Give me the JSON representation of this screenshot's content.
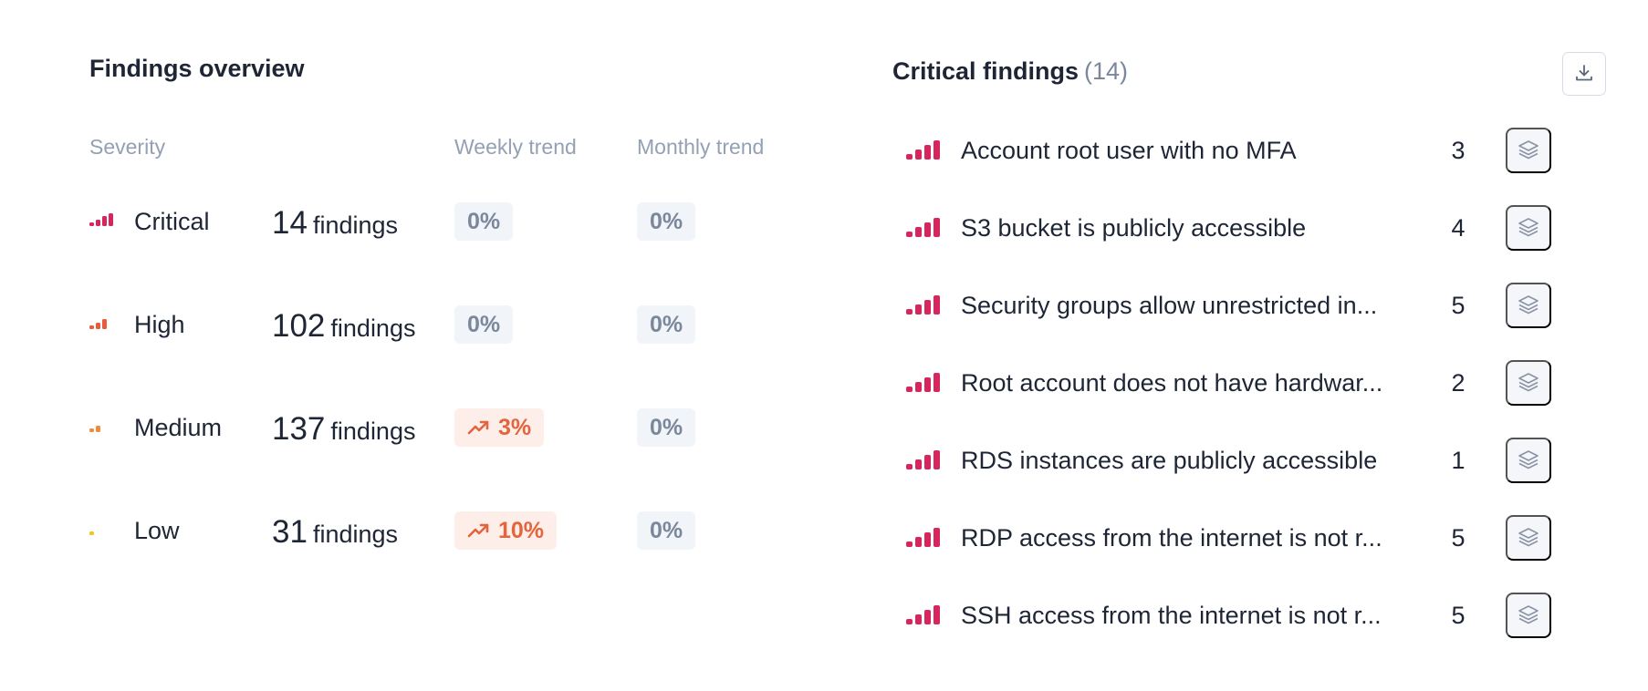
{
  "overview": {
    "title": "Findings overview",
    "columns": {
      "severity": "Severity",
      "weekly": "Weekly trend",
      "monthly": "Monthly trend"
    },
    "findings_word": "findings",
    "rows": [
      {
        "severity": "Critical",
        "count": "14",
        "weekly": "0%",
        "weekly_direction": "flat",
        "monthly": "0%",
        "color": "#d7255e",
        "level": 4
      },
      {
        "severity": "High",
        "count": "102",
        "weekly": "0%",
        "weekly_direction": "flat",
        "monthly": "0%",
        "color": "#ea5a3c",
        "level": 3
      },
      {
        "severity": "Medium",
        "count": "137",
        "weekly": "3%",
        "weekly_direction": "up",
        "monthly": "0%",
        "color": "#f08a3a",
        "level": 2
      },
      {
        "severity": "Low",
        "count": "31",
        "weekly": "10%",
        "weekly_direction": "up",
        "monthly": "0%",
        "color": "#f5c518",
        "level": 1
      }
    ]
  },
  "critical": {
    "title": "Critical findings",
    "count_label": "(14)",
    "download_icon": "download-icon",
    "action_icon": "layers-icon",
    "items": [
      {
        "title": "Account root user with no MFA",
        "count": "3"
      },
      {
        "title": "S3 bucket is publicly accessible",
        "count": "4"
      },
      {
        "title": "Security groups allow unrestricted in...",
        "count": "5"
      },
      {
        "title": "Root account does not have hardwar...",
        "count": "2"
      },
      {
        "title": "RDS instances are publicly accessible",
        "count": "1"
      },
      {
        "title": "RDP access from the internet is not r...",
        "count": "5"
      },
      {
        "title": "SSH access from the internet is not r...",
        "count": "5"
      }
    ]
  },
  "colors": {
    "critical": "#d7255e",
    "trend_up": "#e4643b",
    "muted": "#94a0b4",
    "text": "#1e2535"
  }
}
